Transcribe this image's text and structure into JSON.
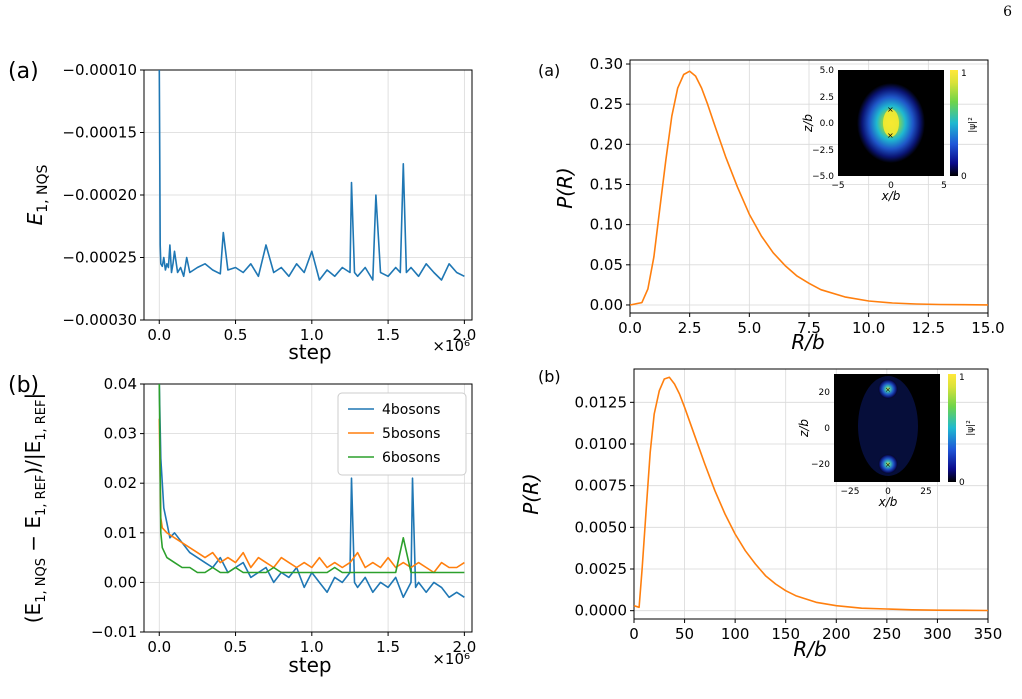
{
  "page_number": "6",
  "chart_data": [
    {
      "id": "left-a",
      "type": "line",
      "panel_label": "(a)",
      "xlabel": "step",
      "ylabel": "E_{1, NQS}",
      "ylabel_main": "E",
      "ylabel_sub": "1, NQS",
      "x_offset_text": "×10⁶",
      "xlim": [
        -0.1,
        2.05
      ],
      "ylim": [
        -0.0003,
        -0.0001
      ],
      "xticks": [
        0.0,
        0.5,
        1.0,
        1.5,
        2.0
      ],
      "xtick_labels": [
        "0.0",
        "0.5",
        "1.0",
        "1.5",
        "2.0"
      ],
      "yticks": [
        -0.0001,
        -0.00015,
        -0.0002,
        -0.00025,
        -0.0003
      ],
      "ytick_labels": [
        "−0.00010",
        "−0.00015",
        "−0.00020",
        "−0.00025",
        "−0.00030"
      ],
      "grid": true,
      "series": [
        {
          "color": "#1f77b4",
          "x": [
            0.0,
            0.003,
            0.006,
            0.01,
            0.02,
            0.03,
            0.04,
            0.05,
            0.06,
            0.07,
            0.08,
            0.09,
            0.1,
            0.12,
            0.14,
            0.16,
            0.18,
            0.2,
            0.25,
            0.3,
            0.35,
            0.4,
            0.42,
            0.45,
            0.5,
            0.55,
            0.6,
            0.65,
            0.7,
            0.75,
            0.8,
            0.85,
            0.9,
            0.95,
            1.0,
            1.05,
            1.1,
            1.15,
            1.2,
            1.25,
            1.26,
            1.28,
            1.3,
            1.35,
            1.4,
            1.42,
            1.45,
            1.5,
            1.55,
            1.58,
            1.6,
            1.62,
            1.65,
            1.7,
            1.75,
            1.8,
            1.85,
            1.9,
            1.95,
            2.0
          ],
          "y": [
            -0.0001,
            -0.00016,
            -0.00024,
            -0.000255,
            -0.000257,
            -0.00025,
            -0.00026,
            -0.000255,
            -0.000258,
            -0.00024,
            -0.000262,
            -0.000255,
            -0.000245,
            -0.000262,
            -0.000258,
            -0.000265,
            -0.00025,
            -0.000262,
            -0.000258,
            -0.000255,
            -0.00026,
            -0.000263,
            -0.00023,
            -0.00026,
            -0.000258,
            -0.000262,
            -0.000255,
            -0.000265,
            -0.00024,
            -0.000262,
            -0.000258,
            -0.000265,
            -0.000255,
            -0.000262,
            -0.000245,
            -0.000268,
            -0.00026,
            -0.000265,
            -0.000258,
            -0.000262,
            -0.00019,
            -0.000262,
            -0.000265,
            -0.000258,
            -0.000268,
            -0.0002,
            -0.000262,
            -0.000265,
            -0.000258,
            -0.000262,
            -0.000175,
            -0.000262,
            -0.000258,
            -0.000265,
            -0.000255,
            -0.000262,
            -0.000268,
            -0.000255,
            -0.000262,
            -0.000265
          ]
        }
      ]
    },
    {
      "id": "left-b",
      "type": "line",
      "panel_label": "(b)",
      "xlabel": "step",
      "ylabel": "(E_{1, NQS} − E_{1, REF})/|E_{1, REF}|",
      "ylabel_parts": [
        "(E",
        "1, NQS",
        " − E",
        "1, REF",
        ")/|E",
        "1, REF",
        "|"
      ],
      "x_offset_text": "×10⁶",
      "xlim": [
        -0.1,
        2.05
      ],
      "ylim": [
        -0.01,
        0.04
      ],
      "xticks": [
        0.0,
        0.5,
        1.0,
        1.5,
        2.0
      ],
      "xtick_labels": [
        "0.0",
        "0.5",
        "1.0",
        "1.5",
        "2.0"
      ],
      "yticks": [
        -0.01,
        0.0,
        0.01,
        0.02,
        0.03,
        0.04
      ],
      "ytick_labels": [
        "−0.01",
        "0.00",
        "0.01",
        "0.02",
        "0.03",
        "0.04"
      ],
      "grid": true,
      "legend_position": "upper right",
      "series": [
        {
          "name": "4bosons",
          "color": "#1f77b4",
          "x": [
            0.0,
            0.01,
            0.02,
            0.03,
            0.05,
            0.07,
            0.1,
            0.15,
            0.2,
            0.25,
            0.3,
            0.35,
            0.4,
            0.45,
            0.5,
            0.55,
            0.6,
            0.65,
            0.7,
            0.75,
            0.8,
            0.85,
            0.9,
            0.95,
            1.0,
            1.05,
            1.1,
            1.15,
            1.2,
            1.25,
            1.26,
            1.28,
            1.3,
            1.35,
            1.4,
            1.45,
            1.5,
            1.55,
            1.6,
            1.65,
            1.66,
            1.68,
            1.7,
            1.75,
            1.8,
            1.85,
            1.9,
            1.95,
            2.0
          ],
          "y": [
            0.04,
            0.025,
            0.02,
            0.015,
            0.012,
            0.009,
            0.01,
            0.008,
            0.006,
            0.005,
            0.004,
            0.003,
            0.005,
            0.002,
            0.003,
            0.004,
            0.001,
            0.002,
            0.003,
            0.0,
            0.002,
            0.001,
            0.003,
            -0.001,
            0.002,
            0.0,
            -0.002,
            0.001,
            0.0,
            0.002,
            0.021,
            0.0,
            -0.001,
            0.001,
            -0.002,
            0.0,
            -0.001,
            0.001,
            -0.003,
            0.0,
            0.021,
            -0.001,
            0.0,
            -0.002,
            0.0,
            -0.001,
            -0.003,
            -0.002,
            -0.003
          ]
        },
        {
          "name": "5bosons",
          "color": "#ff7f0e",
          "x": [
            0.0,
            0.01,
            0.02,
            0.05,
            0.1,
            0.15,
            0.2,
            0.25,
            0.3,
            0.35,
            0.4,
            0.45,
            0.5,
            0.55,
            0.6,
            0.65,
            0.7,
            0.75,
            0.8,
            0.85,
            0.9,
            0.95,
            1.0,
            1.05,
            1.1,
            1.15,
            1.2,
            1.25,
            1.3,
            1.35,
            1.4,
            1.45,
            1.5,
            1.55,
            1.6,
            1.65,
            1.7,
            1.75,
            1.8,
            1.85,
            1.9,
            1.95,
            2.0
          ],
          "y": [
            0.033,
            0.013,
            0.011,
            0.01,
            0.009,
            0.008,
            0.007,
            0.006,
            0.005,
            0.006,
            0.004,
            0.005,
            0.004,
            0.006,
            0.003,
            0.005,
            0.004,
            0.003,
            0.005,
            0.004,
            0.003,
            0.004,
            0.003,
            0.005,
            0.003,
            0.004,
            0.003,
            0.004,
            0.006,
            0.003,
            0.004,
            0.003,
            0.005,
            0.003,
            0.004,
            0.003,
            0.004,
            0.003,
            0.002,
            0.004,
            0.003,
            0.003,
            0.004
          ]
        },
        {
          "name": "6bosons",
          "color": "#2ca02c",
          "x": [
            0.0,
            0.01,
            0.02,
            0.05,
            0.1,
            0.15,
            0.2,
            0.25,
            0.3,
            0.35,
            0.4,
            0.45,
            0.5,
            0.55,
            0.6,
            0.65,
            0.7,
            0.75,
            0.8,
            0.85,
            0.9,
            0.95,
            1.0,
            1.05,
            1.1,
            1.15,
            1.2,
            1.25,
            1.3,
            1.35,
            1.4,
            1.45,
            1.5,
            1.55,
            1.6,
            1.65,
            1.7,
            1.75,
            1.8,
            1.85,
            1.9,
            1.95,
            2.0
          ],
          "y": [
            0.04,
            0.01,
            0.007,
            0.005,
            0.004,
            0.003,
            0.003,
            0.002,
            0.002,
            0.003,
            0.002,
            0.002,
            0.003,
            0.002,
            0.002,
            0.002,
            0.002,
            0.003,
            0.002,
            0.002,
            0.002,
            0.002,
            0.002,
            0.002,
            0.002,
            0.003,
            0.002,
            0.002,
            0.002,
            0.002,
            0.002,
            0.002,
            0.002,
            0.002,
            0.009,
            0.002,
            0.002,
            0.002,
            0.002,
            0.002,
            0.002,
            0.002,
            0.002
          ]
        }
      ]
    },
    {
      "id": "right-a",
      "type": "line",
      "panel_label": "(a)",
      "xlabel": "R/b",
      "ylabel": "P(R)",
      "xlim": [
        0,
        15
      ],
      "ylim": [
        -0.01,
        0.305
      ],
      "xticks": [
        0,
        2.5,
        5,
        7.5,
        10,
        12.5,
        15
      ],
      "xtick_labels": [
        "0.0",
        "2.5",
        "5.0",
        "7.5",
        "10.0",
        "12.5",
        "15.0"
      ],
      "yticks": [
        0,
        0.05,
        0.1,
        0.15,
        0.2,
        0.25,
        0.3
      ],
      "ytick_labels": [
        "0.00",
        "0.05",
        "0.10",
        "0.15",
        "0.20",
        "0.25",
        "0.30"
      ],
      "grid": true,
      "series": [
        {
          "color": "#ff7f0e",
          "x": [
            0,
            0.5,
            0.75,
            1.0,
            1.25,
            1.5,
            1.75,
            2.0,
            2.25,
            2.5,
            2.75,
            3.0,
            3.25,
            3.5,
            4.0,
            4.5,
            5.0,
            5.5,
            6.0,
            6.5,
            7.0,
            7.5,
            8.0,
            9.0,
            10.0,
            11.0,
            12.0,
            13.0,
            14.0,
            15.0
          ],
          "y": [
            0.0,
            0.003,
            0.02,
            0.06,
            0.12,
            0.18,
            0.235,
            0.27,
            0.287,
            0.291,
            0.285,
            0.27,
            0.25,
            0.228,
            0.185,
            0.147,
            0.113,
            0.086,
            0.065,
            0.049,
            0.036,
            0.027,
            0.019,
            0.01,
            0.005,
            0.0025,
            0.0012,
            0.0006,
            0.0003,
            0.0001
          ]
        }
      ],
      "inset": {
        "type": "heatmap",
        "xlabel": "x/b",
        "ylabel": "z/b",
        "colorbar_label": "|ψ|²",
        "xtick_labels": [
          "−5",
          "0",
          "5"
        ],
        "ytick_labels": [
          "5.0",
          "2.5",
          "0.0",
          "−2.5",
          "−5.0"
        ],
        "colorbar_tick_labels": [
          "1",
          "0"
        ],
        "xlim": [
          -5,
          5
        ],
        "ylim": [
          -5,
          5
        ],
        "markers": [
          [
            0,
            1.2
          ],
          [
            0,
            -1.2
          ]
        ]
      }
    },
    {
      "id": "right-b",
      "type": "line",
      "panel_label": "(b)",
      "xlabel": "R/b",
      "ylabel": "P(R)",
      "xlim": [
        0,
        350
      ],
      "ylim": [
        -0.0005,
        0.0145
      ],
      "xticks": [
        0,
        50,
        100,
        150,
        200,
        250,
        300,
        350
      ],
      "xtick_labels": [
        "0",
        "50",
        "100",
        "150",
        "200",
        "250",
        "300",
        "350"
      ],
      "yticks": [
        0,
        0.0025,
        0.005,
        0.0075,
        0.01,
        0.0125
      ],
      "ytick_labels": [
        "0.0000",
        "0.0025",
        "0.0050",
        "0.0075",
        "0.0100",
        "0.0125"
      ],
      "grid": true,
      "series": [
        {
          "color": "#ff7f0e",
          "x": [
            0,
            5,
            8,
            12,
            16,
            20,
            25,
            30,
            35,
            40,
            45,
            50,
            60,
            70,
            80,
            90,
            100,
            110,
            120,
            130,
            140,
            150,
            160,
            180,
            200,
            225,
            250,
            275,
            300,
            325,
            350
          ],
          "y": [
            0.0003,
            0.0002,
            0.0025,
            0.006,
            0.0095,
            0.0118,
            0.0132,
            0.0139,
            0.014,
            0.0136,
            0.013,
            0.0122,
            0.0105,
            0.0088,
            0.0072,
            0.0058,
            0.0046,
            0.0036,
            0.0028,
            0.0021,
            0.0016,
            0.0012,
            0.0009,
            0.0005,
            0.0003,
            0.00015,
            0.0001,
            5e-05,
            3e-05,
            2e-05,
            1e-05
          ]
        }
      ],
      "inset": {
        "type": "heatmap",
        "xlabel": "x/b",
        "ylabel": "z/b",
        "colorbar_label": "|ψ|²",
        "xtick_labels": [
          "−25",
          "0",
          "25"
        ],
        "ytick_labels": [
          "20",
          "0",
          "−20"
        ],
        "colorbar_tick_labels": [
          "1",
          "0"
        ],
        "xlim": [
          -35,
          35
        ],
        "ylim": [
          -30,
          30
        ],
        "markers": [
          [
            0,
            22
          ],
          [
            0,
            -22
          ]
        ]
      }
    }
  ]
}
